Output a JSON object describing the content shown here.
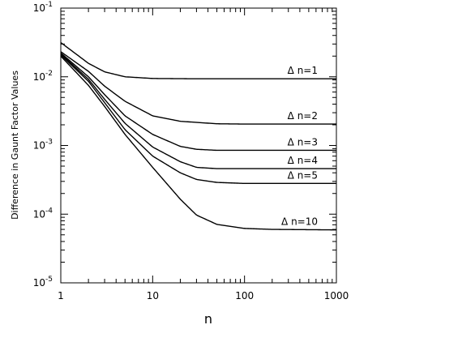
{
  "chart_data": {
    "type": "line",
    "xlabel": "n",
    "ylabel": "Difference in Gaunt Factor Values",
    "xscale": "log",
    "yscale": "log",
    "xlim": [
      1,
      1000
    ],
    "ylim": [
      1e-05,
      0.1
    ],
    "x_ticks": [
      1,
      10,
      100,
      1000
    ],
    "x_tick_labels": [
      "1",
      "10",
      "100",
      "1000"
    ],
    "y_ticks": [
      1e-05,
      0.0001,
      0.001,
      0.01,
      0.1
    ],
    "y_tick_labels": [
      {
        "base": "10",
        "exp": "-5"
      },
      {
        "base": "10",
        "exp": "-4"
      },
      {
        "base": "10",
        "exp": "-3"
      },
      {
        "base": "10",
        "exp": "-2"
      },
      {
        "base": "10",
        "exp": "-1"
      }
    ],
    "grid": false,
    "series": [
      {
        "name": "Δ n=1",
        "color": "#000000",
        "points": [
          [
            1,
            0.0315
          ],
          [
            2,
            0.0157
          ],
          [
            3,
            0.0118
          ],
          [
            5,
            0.01
          ],
          [
            10,
            0.00945
          ],
          [
            30,
            0.00935
          ],
          [
            100,
            0.00935
          ],
          [
            1000,
            0.00935
          ]
        ]
      },
      {
        "name": "Δ n=2",
        "color": "#000000",
        "points": [
          [
            1,
            0.0232
          ],
          [
            2,
            0.012
          ],
          [
            3,
            0.0073
          ],
          [
            5,
            0.0044
          ],
          [
            10,
            0.0027
          ],
          [
            20,
            0.00225
          ],
          [
            50,
            0.00207
          ],
          [
            100,
            0.00205
          ],
          [
            1000,
            0.00205
          ]
        ]
      },
      {
        "name": "Δ n=3",
        "color": "#000000",
        "points": [
          [
            1,
            0.0222
          ],
          [
            2,
            0.01
          ],
          [
            3,
            0.0055
          ],
          [
            5,
            0.0027
          ],
          [
            10,
            0.00145
          ],
          [
            20,
            0.00097
          ],
          [
            30,
            0.00088
          ],
          [
            50,
            0.00085
          ],
          [
            100,
            0.00085
          ],
          [
            1000,
            0.00085
          ]
        ]
      },
      {
        "name": "Δ n=4",
        "color": "#000000",
        "points": [
          [
            1,
            0.0215
          ],
          [
            2,
            0.0092
          ],
          [
            3,
            0.0047
          ],
          [
            5,
            0.0021
          ],
          [
            10,
            0.00095
          ],
          [
            20,
            0.00058
          ],
          [
            30,
            0.00048
          ],
          [
            50,
            0.00046
          ],
          [
            100,
            0.00046
          ],
          [
            1000,
            0.00046
          ]
        ]
      },
      {
        "name": "Δ n=5",
        "color": "#000000",
        "points": [
          [
            1,
            0.0208
          ],
          [
            2,
            0.0086
          ],
          [
            3,
            0.0042
          ],
          [
            5,
            0.0017
          ],
          [
            10,
            0.0007
          ],
          [
            20,
            0.0004
          ],
          [
            30,
            0.00032
          ],
          [
            50,
            0.00029
          ],
          [
            100,
            0.00028
          ],
          [
            1000,
            0.00028
          ]
        ]
      },
      {
        "name": "Δ n=10",
        "color": "#000000",
        "points": [
          [
            1,
            0.02
          ],
          [
            2,
            0.0075
          ],
          [
            3,
            0.0037
          ],
          [
            5,
            0.00145
          ],
          [
            10,
            0.00048
          ],
          [
            20,
            0.000165
          ],
          [
            30,
            9.7e-05
          ],
          [
            50,
            7.1e-05
          ],
          [
            100,
            6.2e-05
          ],
          [
            200,
            6e-05
          ],
          [
            1000,
            5.9e-05
          ]
        ]
      }
    ]
  }
}
